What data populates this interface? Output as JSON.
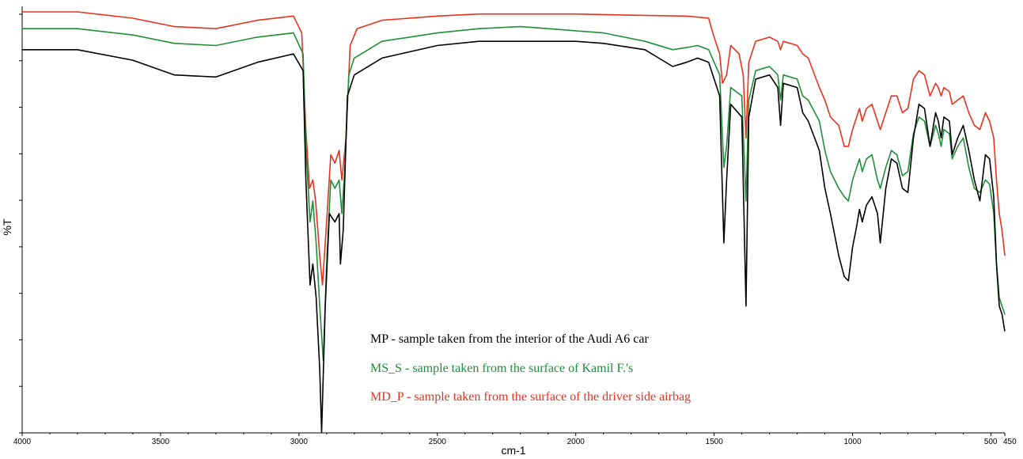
{
  "chart_data": {
    "type": "line",
    "title": "",
    "xlabel": "cm-1",
    "ylabel": "%T",
    "xlim": [
      4000,
      450
    ],
    "x_reversed": true,
    "ylim": [
      0,
      100
    ],
    "y_ticks_labeled": false,
    "x_ticks": [
      4000,
      3500,
      3000,
      2500,
      2000,
      1500,
      1000,
      500,
      450
    ],
    "x_tick_labels": [
      "4000",
      "3500",
      "3000",
      "2500",
      "2000",
      "1500",
      "1000",
      "500",
      "450"
    ],
    "grid": false,
    "legend_position": "bottom-center",
    "series": [
      {
        "name": "MP - sample taken from the interior of the Audi A6 car",
        "color": "#000000",
        "points": [
          [
            4000,
            91
          ],
          [
            3800,
            91
          ],
          [
            3600,
            88.5
          ],
          [
            3450,
            85
          ],
          [
            3300,
            84.5
          ],
          [
            3150,
            88
          ],
          [
            3020,
            90
          ],
          [
            2985,
            86
          ],
          [
            2975,
            60
          ],
          [
            2960,
            35
          ],
          [
            2950,
            40
          ],
          [
            2938,
            32
          ],
          [
            2925,
            15
          ],
          [
            2918,
            0
          ],
          [
            2905,
            30
          ],
          [
            2890,
            52
          ],
          [
            2870,
            50
          ],
          [
            2855,
            52
          ],
          [
            2850,
            40
          ],
          [
            2840,
            48
          ],
          [
            2825,
            80
          ],
          [
            2800,
            85
          ],
          [
            2700,
            89
          ],
          [
            2500,
            92
          ],
          [
            2350,
            93
          ],
          [
            2200,
            93
          ],
          [
            2100,
            93
          ],
          [
            2000,
            93
          ],
          [
            1900,
            92.5
          ],
          [
            1750,
            91
          ],
          [
            1650,
            87
          ],
          [
            1600,
            88
          ],
          [
            1560,
            89
          ],
          [
            1520,
            88
          ],
          [
            1480,
            80
          ],
          [
            1465,
            45
          ],
          [
            1455,
            60
          ],
          [
            1440,
            78
          ],
          [
            1400,
            75
          ],
          [
            1385,
            30
          ],
          [
            1375,
            75
          ],
          [
            1350,
            84
          ],
          [
            1300,
            85
          ],
          [
            1270,
            82
          ],
          [
            1260,
            73
          ],
          [
            1250,
            83
          ],
          [
            1200,
            82
          ],
          [
            1180,
            76
          ],
          [
            1160,
            74
          ],
          [
            1120,
            67
          ],
          [
            1100,
            58
          ],
          [
            1080,
            52
          ],
          [
            1050,
            42
          ],
          [
            1030,
            37
          ],
          [
            1015,
            36
          ],
          [
            1000,
            44
          ],
          [
            985,
            49
          ],
          [
            975,
            53
          ],
          [
            965,
            50
          ],
          [
            950,
            54
          ],
          [
            930,
            56
          ],
          [
            910,
            52
          ],
          [
            900,
            45
          ],
          [
            880,
            58
          ],
          [
            860,
            65
          ],
          [
            840,
            64
          ],
          [
            820,
            58
          ],
          [
            800,
            57
          ],
          [
            780,
            70
          ],
          [
            760,
            78
          ],
          [
            740,
            77
          ],
          [
            720,
            68
          ],
          [
            700,
            76
          ],
          [
            690,
            74
          ],
          [
            680,
            70
          ],
          [
            670,
            75
          ],
          [
            650,
            74
          ],
          [
            640,
            66
          ],
          [
            620,
            70
          ],
          [
            600,
            73
          ],
          [
            580,
            67
          ],
          [
            560,
            60
          ],
          [
            540,
            55
          ],
          [
            520,
            66
          ],
          [
            505,
            65
          ],
          [
            490,
            56
          ],
          [
            480,
            40
          ],
          [
            470,
            30
          ],
          [
            460,
            28
          ],
          [
            450,
            24
          ]
        ]
      },
      {
        "name": "MS_S - sample taken from the surface of Kamil F.'s",
        "color": "#1f8f3a",
        "points": [
          [
            4000,
            96
          ],
          [
            3800,
            96
          ],
          [
            3600,
            94.5
          ],
          [
            3450,
            92.5
          ],
          [
            3300,
            92
          ],
          [
            3150,
            94
          ],
          [
            3020,
            95
          ],
          [
            2985,
            90
          ],
          [
            2975,
            68
          ],
          [
            2960,
            50
          ],
          [
            2950,
            55
          ],
          [
            2938,
            45
          ],
          [
            2925,
            30
          ],
          [
            2912,
            17
          ],
          [
            2900,
            40
          ],
          [
            2885,
            60
          ],
          [
            2870,
            58
          ],
          [
            2855,
            60
          ],
          [
            2845,
            52
          ],
          [
            2835,
            62
          ],
          [
            2820,
            85
          ],
          [
            2800,
            89
          ],
          [
            2700,
            93
          ],
          [
            2500,
            95
          ],
          [
            2350,
            96
          ],
          [
            2200,
            96.5
          ],
          [
            2100,
            96
          ],
          [
            2000,
            95.5
          ],
          [
            1900,
            95
          ],
          [
            1750,
            93
          ],
          [
            1650,
            91
          ],
          [
            1600,
            91.5
          ],
          [
            1560,
            92
          ],
          [
            1520,
            91
          ],
          [
            1480,
            85
          ],
          [
            1465,
            63
          ],
          [
            1455,
            68
          ],
          [
            1440,
            82
          ],
          [
            1400,
            80
          ],
          [
            1385,
            55
          ],
          [
            1375,
            79
          ],
          [
            1350,
            86
          ],
          [
            1300,
            87
          ],
          [
            1270,
            85
          ],
          [
            1260,
            79
          ],
          [
            1250,
            85
          ],
          [
            1200,
            84
          ],
          [
            1180,
            80
          ],
          [
            1160,
            79
          ],
          [
            1120,
            74
          ],
          [
            1100,
            67
          ],
          [
            1080,
            62
          ],
          [
            1050,
            58
          ],
          [
            1030,
            56
          ],
          [
            1015,
            55
          ],
          [
            1000,
            60
          ],
          [
            985,
            63
          ],
          [
            975,
            65
          ],
          [
            965,
            62
          ],
          [
            950,
            65
          ],
          [
            930,
            66
          ],
          [
            910,
            60
          ],
          [
            900,
            58
          ],
          [
            880,
            63
          ],
          [
            860,
            67
          ],
          [
            840,
            66
          ],
          [
            820,
            61
          ],
          [
            800,
            62
          ],
          [
            780,
            71
          ],
          [
            760,
            75
          ],
          [
            740,
            74
          ],
          [
            720,
            68
          ],
          [
            700,
            73
          ],
          [
            690,
            71
          ],
          [
            680,
            68
          ],
          [
            670,
            72
          ],
          [
            650,
            71
          ],
          [
            640,
            65
          ],
          [
            620,
            68
          ],
          [
            600,
            70
          ],
          [
            580,
            63
          ],
          [
            560,
            58
          ],
          [
            540,
            57
          ],
          [
            520,
            60
          ],
          [
            505,
            59
          ],
          [
            490,
            52
          ],
          [
            480,
            40
          ],
          [
            470,
            32
          ],
          [
            460,
            30
          ],
          [
            450,
            28
          ]
        ]
      },
      {
        "name": "MD_P - sample taken from the surface of the driver side airbag",
        "color": "#e8321e",
        "points": [
          [
            4000,
            100
          ],
          [
            3800,
            100
          ],
          [
            3600,
            98.5
          ],
          [
            3450,
            96.5
          ],
          [
            3300,
            96
          ],
          [
            3150,
            98
          ],
          [
            3020,
            99
          ],
          [
            2990,
            95
          ],
          [
            2975,
            72
          ],
          [
            2962,
            58
          ],
          [
            2950,
            60
          ],
          [
            2940,
            55
          ],
          [
            2925,
            42
          ],
          [
            2915,
            35
          ],
          [
            2900,
            50
          ],
          [
            2885,
            66
          ],
          [
            2870,
            64
          ],
          [
            2855,
            67
          ],
          [
            2845,
            60
          ],
          [
            2830,
            70
          ],
          [
            2815,
            92
          ],
          [
            2790,
            96
          ],
          [
            2700,
            98
          ],
          [
            2500,
            99
          ],
          [
            2350,
            99.5
          ],
          [
            2200,
            99.5
          ],
          [
            2100,
            99.5
          ],
          [
            2000,
            99.5
          ],
          [
            1800,
            99.2
          ],
          [
            1600,
            99
          ],
          [
            1520,
            98.5
          ],
          [
            1505,
            95
          ],
          [
            1480,
            90
          ],
          [
            1470,
            83
          ],
          [
            1455,
            85
          ],
          [
            1440,
            92
          ],
          [
            1410,
            90
          ],
          [
            1395,
            85
          ],
          [
            1385,
            70
          ],
          [
            1375,
            88
          ],
          [
            1350,
            93
          ],
          [
            1300,
            94
          ],
          [
            1270,
            93
          ],
          [
            1260,
            91
          ],
          [
            1250,
            93
          ],
          [
            1200,
            92
          ],
          [
            1180,
            90
          ],
          [
            1160,
            89
          ],
          [
            1120,
            82
          ],
          [
            1100,
            79
          ],
          [
            1080,
            75
          ],
          [
            1050,
            73
          ],
          [
            1030,
            68
          ],
          [
            1015,
            68
          ],
          [
            1000,
            72
          ],
          [
            985,
            75
          ],
          [
            975,
            77
          ],
          [
            965,
            74
          ],
          [
            950,
            77
          ],
          [
            930,
            78
          ],
          [
            910,
            74
          ],
          [
            900,
            72
          ],
          [
            880,
            76
          ],
          [
            860,
            80
          ],
          [
            840,
            80
          ],
          [
            820,
            76
          ],
          [
            800,
            77
          ],
          [
            780,
            84
          ],
          [
            760,
            86
          ],
          [
            740,
            85
          ],
          [
            720,
            80
          ],
          [
            700,
            83
          ],
          [
            690,
            82
          ],
          [
            680,
            80
          ],
          [
            670,
            82
          ],
          [
            650,
            81
          ],
          [
            640,
            78
          ],
          [
            620,
            79
          ],
          [
            600,
            80
          ],
          [
            580,
            76
          ],
          [
            560,
            73
          ],
          [
            540,
            72
          ],
          [
            520,
            76
          ],
          [
            505,
            74
          ],
          [
            490,
            70
          ],
          [
            480,
            60
          ],
          [
            470,
            52
          ],
          [
            460,
            48
          ],
          [
            450,
            42
          ]
        ]
      }
    ]
  }
}
